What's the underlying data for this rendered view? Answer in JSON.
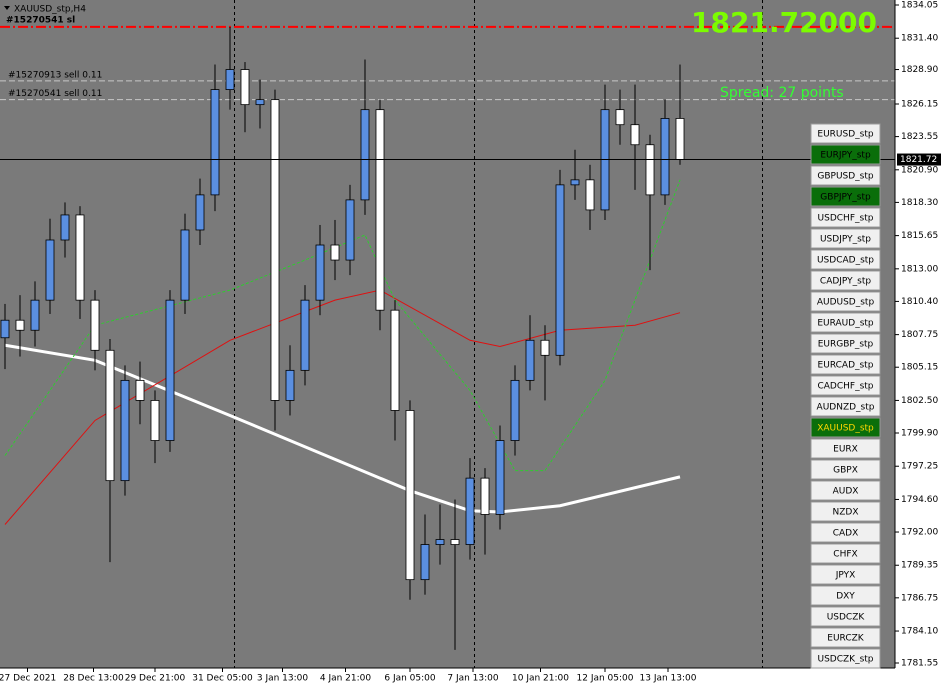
{
  "window": {
    "title": "XAUUSD_stp,H4"
  },
  "chart_data": {
    "type": "candlestick",
    "open": [
      1807.5,
      1808.9,
      1808.1,
      1810.5,
      1815.3,
      1817.3,
      1810.5,
      1806.5,
      1796.1,
      1804.1,
      1802.5,
      1799.3,
      1810.5,
      1816.1,
      1818.9,
      1827.3,
      1828.9,
      1826.1,
      1826.5,
      1802.5,
      1804.9,
      1810.5,
      1814.9,
      1813.7,
      1818.5,
      1825.7,
      1809.7,
      1801.7,
      1788.2,
      1791.0,
      1791.4,
      1791.0,
      1796.3,
      1793.4,
      1799.3,
      1804.1,
      1807.3,
      1806.1,
      1819.7,
      1820.1,
      1817.7,
      1825.7,
      1824.5,
      1822.9,
      1818.9,
      1825.0
    ],
    "high": [
      1810.2,
      1810.9,
      1812.0,
      1817.0,
      1818.3,
      1818.0,
      1811.3,
      1807.4,
      1805.3,
      1805.6,
      1803.3,
      1811.3,
      1817.4,
      1820.2,
      1829.3,
      1832.3,
      1829.5,
      1828.1,
      1827.3,
      1806.9,
      1811.7,
      1816.5,
      1816.9,
      1819.7,
      1829.7,
      1826.5,
      1810.5,
      1802.5,
      1793.4,
      1794.2,
      1794.6,
      1797.9,
      1797.1,
      1800.5,
      1805.3,
      1809.3,
      1808.5,
      1820.9,
      1822.5,
      1821.3,
      1827.7,
      1827.3,
      1827.7,
      1823.7,
      1826.5,
      1829.3
    ],
    "low": [
      1805.0,
      1806.0,
      1806.8,
      1809.4,
      1813.9,
      1809.0,
      1804.9,
      1789.6,
      1794.9,
      1800.6,
      1797.5,
      1798.4,
      1809.4,
      1814.9,
      1817.6,
      1825.7,
      1823.9,
      1824.2,
      1800.1,
      1801.3,
      1803.7,
      1809.3,
      1812.1,
      1812.5,
      1817.3,
      1808.1,
      1799.3,
      1786.6,
      1787.0,
      1789.4,
      1782.6,
      1789.8,
      1790.2,
      1792.2,
      1798.1,
      1803.3,
      1802.5,
      1805.3,
      1818.5,
      1816.1,
      1816.9,
      1822.9,
      1819.3,
      1812.9,
      1818.1,
      1821.3
    ],
    "close": [
      1808.9,
      1808.1,
      1810.5,
      1815.3,
      1817.3,
      1810.5,
      1806.5,
      1796.1,
      1804.1,
      1802.5,
      1799.3,
      1810.5,
      1816.1,
      1818.9,
      1827.3,
      1828.9,
      1826.1,
      1826.5,
      1802.5,
      1804.9,
      1810.5,
      1814.9,
      1813.7,
      1818.5,
      1825.7,
      1809.7,
      1801.7,
      1788.2,
      1791.0,
      1791.4,
      1791.0,
      1796.3,
      1793.4,
      1799.3,
      1804.1,
      1807.3,
      1806.1,
      1819.7,
      1820.1,
      1817.7,
      1825.7,
      1824.5,
      1822.9,
      1818.9,
      1825.0,
      1821.72
    ],
    "up_color": "#5b8fe0",
    "down_color": "#ffffff",
    "ylim": [
      1781.55,
      1834.05
    ],
    "yticks": [
      1834.05,
      {
        "value": 1831.4,
        "label": "1831.40"
      },
      {
        "value": 1828.9,
        "label": "1828.90"
      },
      1826.15,
      1823.55,
      {
        "value": 1820.9,
        "label": "1820.90"
      },
      {
        "value": 1818.3,
        "label": "1818.30"
      },
      1815.65,
      {
        "value": 1813,
        "label": "1813.00"
      },
      {
        "value": 1810.4,
        "label": "1810.40"
      },
      1807.75,
      1805.15,
      {
        "value": 1802.5,
        "label": "1802.50"
      },
      {
        "value": 1799.9,
        "label": "1799.90"
      },
      1797.25,
      {
        "value": 1794.6,
        "label": "1794.60"
      },
      {
        "value": 1792,
        "label": "1792.00"
      },
      1789.35,
      1786.75,
      {
        "value": 1784.1,
        "label": "1784.10"
      },
      1781.55
    ],
    "xlim": [
      -0.333,
      59.333
    ],
    "xticks": [
      {
        "value": 1.5,
        "label": "27 Dec 2021"
      },
      {
        "value": 5.9,
        "label": "28 Dec 13:00"
      },
      {
        "value": 10,
        "label": "29 Dec 21:00"
      },
      {
        "value": 14.5,
        "label": "31 Dec 05:00"
      },
      {
        "value": 18.5,
        "label": "3 Jan 13:00"
      },
      {
        "value": 22.7,
        "label": "4 Jan 21:00"
      },
      {
        "value": 27,
        "label": "6 Jan 05:00"
      },
      {
        "value": 31.2,
        "label": "7 Jan 13:00"
      },
      {
        "value": 35.7,
        "label": "10 Jan 21:00"
      },
      {
        "value": 40,
        "label": "12 Jan 05:00"
      },
      {
        "value": 44.2,
        "label": "13 Jan 13:00"
      }
    ],
    "separators": [
      15.3,
      31.3,
      50.5
    ],
    "moving_averages": [
      {
        "color": "#ffffff",
        "width": 3,
        "dashed": false,
        "x": [
          0,
          6,
          15,
          27,
          31,
          33,
          37,
          45
        ],
        "values": [
          1806.9,
          1805.7,
          1801.3,
          1795.3,
          1793.7,
          1793.6,
          1794.1,
          1796.4
        ]
      },
      {
        "color": "#e01010",
        "width": 1,
        "dashed": false,
        "x": [
          0,
          6,
          15,
          22,
          25,
          31,
          33,
          37,
          42,
          45
        ],
        "values": [
          1792.6,
          1800.9,
          1807.3,
          1810.5,
          1811.3,
          1807.3,
          1806.8,
          1808.1,
          1808.5,
          1809.5
        ]
      },
      {
        "color": "#2ecc2e",
        "width": 1,
        "dashed": true,
        "x": [
          0,
          6,
          15,
          20,
          24,
          26,
          31,
          34,
          36,
          40,
          45
        ],
        "values": [
          1798.1,
          1808.5,
          1811.3,
          1813.7,
          1815.7,
          1810.5,
          1803.3,
          1796.9,
          1796.9,
          1804.1,
          1820.1
        ]
      }
    ],
    "current_price": 1821.72,
    "big_price": "1821.72000",
    "spread": "Spread: 27 points",
    "sl": {
      "label": "#15270541 sl",
      "price": 1832.3
    },
    "orders": [
      {
        "label": "#15270913 sell 0.11",
        "price": 1828.0
      },
      {
        "label": "#15270541 sell 0.11",
        "price": 1826.5
      }
    ]
  },
  "symbols": [
    {
      "label": "EURUSD_stp",
      "active": false
    },
    {
      "label": "EURJPY_stp",
      "active": true
    },
    {
      "label": "GBPUSD_stp",
      "active": false
    },
    {
      "label": "GBPJPY_stp",
      "active": true
    },
    {
      "label": "USDCHF_stp",
      "active": false
    },
    {
      "label": "USDJPY_stp",
      "active": false
    },
    {
      "label": "USDCAD_stp",
      "active": false
    },
    {
      "label": "CADJPY_stp",
      "active": false
    },
    {
      "label": "AUDUSD_stp",
      "active": false
    },
    {
      "label": "EURAUD_stp",
      "active": false
    },
    {
      "label": "EURGBP_stp",
      "active": false
    },
    {
      "label": "EURCAD_stp",
      "active": false
    },
    {
      "label": "CADCHF_stp",
      "active": false
    },
    {
      "label": "AUDNZD_stp",
      "active": false
    },
    {
      "label": "XAUUSD_stp",
      "active": true,
      "current": true
    },
    {
      "label": "EURX",
      "active": false
    },
    {
      "label": "GBPX",
      "active": false
    },
    {
      "label": "AUDX",
      "active": false
    },
    {
      "label": "NZDX",
      "active": false
    },
    {
      "label": "CADX",
      "active": false
    },
    {
      "label": "CHFX",
      "active": false
    },
    {
      "label": "JPYX",
      "active": false
    },
    {
      "label": "DXY",
      "active": false
    },
    {
      "label": "USDCZK",
      "active": false
    },
    {
      "label": "EURCZK",
      "active": false
    },
    {
      "label": "USDCZK_stp",
      "active": false
    }
  ]
}
